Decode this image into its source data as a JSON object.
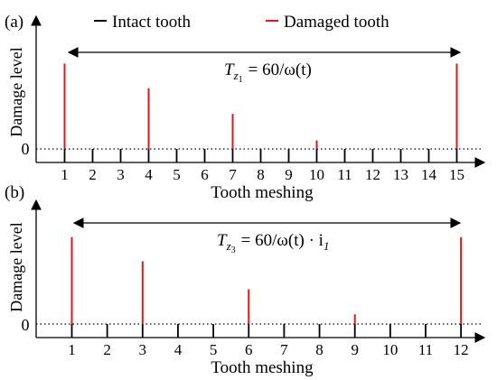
{
  "legend": {
    "intact_label": "Intact tooth",
    "damaged_label": "Damaged tooth",
    "intact_color": "#000000",
    "damaged_color": "#e8141b"
  },
  "chart_data": [
    {
      "type": "bar",
      "panel_label": "(a)",
      "xlabel": "Tooth meshing",
      "ylabel": "Damage level",
      "ytick": "0",
      "x": [
        1,
        2,
        3,
        4,
        5,
        6,
        7,
        8,
        9,
        10,
        11,
        12,
        13,
        14,
        15
      ],
      "series": [
        {
          "name": "Damaged tooth",
          "values": [
            0.9,
            null,
            null,
            0.64,
            null,
            null,
            0.37,
            null,
            null,
            0.09,
            null,
            null,
            null,
            null,
            0.9
          ]
        }
      ],
      "ylim": [
        0,
        1
      ],
      "annotation": {
        "lhs": "T",
        "sub": "z",
        "subsub": "1",
        "rhs": "= 60/ω(t)",
        "from": 1,
        "to": 15
      }
    },
    {
      "type": "bar",
      "panel_label": "(b)",
      "xlabel": "Tooth meshing",
      "ylabel": "Damage level",
      "ytick": "0",
      "x": [
        1,
        2,
        3,
        4,
        5,
        6,
        7,
        8,
        9,
        10,
        11,
        12
      ],
      "series": [
        {
          "name": "Damaged tooth",
          "values": [
            0.9,
            null,
            0.65,
            null,
            null,
            0.36,
            null,
            null,
            0.1,
            null,
            null,
            0.9
          ]
        }
      ],
      "ylim": [
        0,
        1
      ],
      "annotation": {
        "lhs": "T",
        "sub": "z",
        "subsub": "3",
        "rhs": "= 60/ω(t) · i",
        "rhs_sub": "1",
        "from": 1,
        "to": 12
      }
    }
  ]
}
